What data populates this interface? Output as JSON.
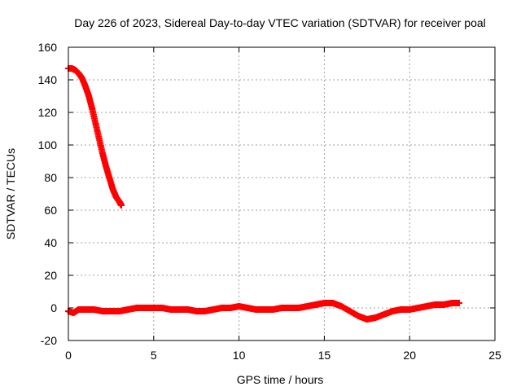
{
  "chart_data": {
    "type": "scatter",
    "title": "Day 226 of 2023, Sidereal Day-to-day VTEC variation (SDTVAR) for receiver poal",
    "xlabel": "GPS time / hours",
    "ylabel": "SDTVAR / TECUs",
    "xlim": [
      0,
      25
    ],
    "ylim": [
      -20,
      160
    ],
    "xticks": [
      0,
      5,
      10,
      15,
      20,
      25
    ],
    "yticks": [
      -20,
      0,
      20,
      40,
      60,
      80,
      100,
      120,
      140,
      160
    ],
    "xtick_labels": [
      "0",
      "5",
      "10",
      "15",
      "20",
      "25"
    ],
    "ytick_labels": [
      "-20",
      "0",
      "20",
      "40",
      "60",
      "80",
      "100",
      "120",
      "140",
      "160"
    ],
    "grid": true,
    "legend": "none",
    "marker": "plus",
    "series": [
      {
        "color": "#ff0000",
        "points": [
          [
            0.0,
            147
          ],
          [
            0.2,
            147
          ],
          [
            0.4,
            146
          ],
          [
            0.6,
            144
          ],
          [
            0.8,
            141
          ],
          [
            1.0,
            136
          ],
          [
            1.2,
            130
          ],
          [
            1.4,
            122
          ],
          [
            1.6,
            113
          ],
          [
            1.8,
            104
          ],
          [
            2.0,
            95
          ],
          [
            2.2,
            87
          ],
          [
            2.4,
            80
          ],
          [
            2.6,
            73
          ],
          [
            2.8,
            68
          ],
          [
            3.0,
            65
          ],
          [
            3.1,
            63
          ]
        ]
      },
      {
        "color": "#ff0000",
        "points": [
          [
            0.0,
            -2
          ],
          [
            0.3,
            -3
          ],
          [
            0.6,
            -1
          ],
          [
            1.0,
            -1
          ],
          [
            1.5,
            -1
          ],
          [
            2.0,
            -2
          ],
          [
            2.5,
            -2
          ],
          [
            3.0,
            -2
          ],
          [
            3.5,
            -1
          ],
          [
            4.0,
            0
          ],
          [
            4.5,
            0
          ],
          [
            5.0,
            0
          ],
          [
            5.5,
            0
          ],
          [
            6.0,
            -1
          ],
          [
            6.5,
            -1
          ],
          [
            7.0,
            -1
          ],
          [
            7.5,
            -2
          ],
          [
            8.0,
            -2
          ],
          [
            8.5,
            -1
          ],
          [
            9.0,
            0
          ],
          [
            9.5,
            0
          ],
          [
            10.0,
            1
          ],
          [
            10.5,
            0
          ],
          [
            11.0,
            -1
          ],
          [
            11.5,
            -1
          ],
          [
            12.0,
            -1
          ],
          [
            12.5,
            0
          ],
          [
            13.0,
            0
          ],
          [
            13.5,
            0
          ],
          [
            14.0,
            1
          ],
          [
            14.5,
            2
          ],
          [
            15.0,
            3
          ],
          [
            15.5,
            3
          ],
          [
            16.0,
            1
          ],
          [
            16.5,
            -2
          ],
          [
            17.0,
            -5
          ],
          [
            17.5,
            -7
          ],
          [
            18.0,
            -6
          ],
          [
            18.5,
            -4
          ],
          [
            19.0,
            -2
          ],
          [
            19.5,
            -1
          ],
          [
            20.0,
            -1
          ],
          [
            20.5,
            0
          ],
          [
            21.0,
            1
          ],
          [
            21.5,
            2
          ],
          [
            22.0,
            2
          ],
          [
            22.5,
            3
          ],
          [
            22.9,
            3
          ]
        ]
      }
    ]
  }
}
